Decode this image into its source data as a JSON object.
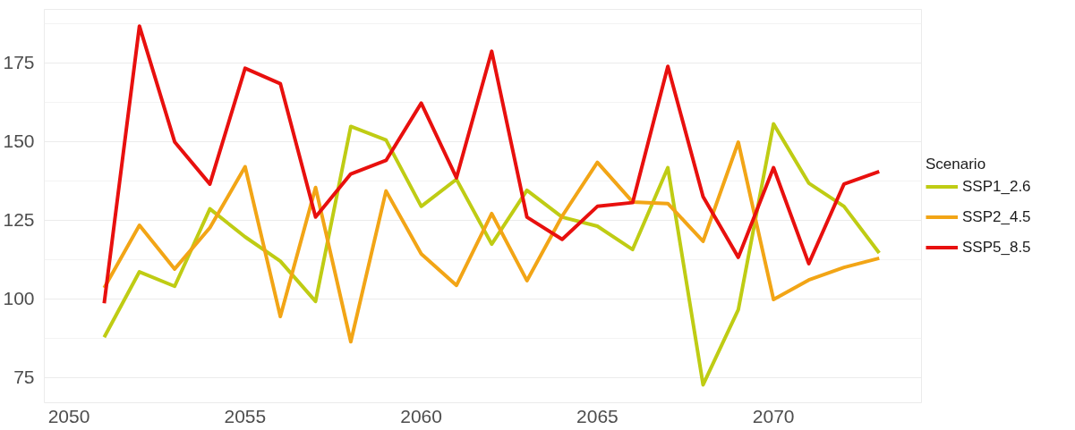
{
  "chart_data": {
    "type": "line",
    "x": [
      2051,
      2052,
      2053,
      2054,
      2055,
      2056,
      2057,
      2058,
      2059,
      2060,
      2061,
      2062,
      2063,
      2064,
      2065,
      2066,
      2067,
      2068,
      2069,
      2070,
      2071,
      2072,
      2073
    ],
    "legend_title": "Scenario",
    "series": [
      {
        "name": "SSP1_2.6",
        "color": "#bfcc14",
        "values": [
          87.8,
          108.6,
          104,
          128.6,
          119.7,
          112,
          99.2,
          154.8,
          150.5,
          129.4,
          138,
          117.4,
          134.5,
          126,
          123.1,
          115.7,
          141.7,
          72.7,
          96.6,
          155.6,
          136.8,
          129.4,
          114.6
        ]
      },
      {
        "name": "SSP2_4.5",
        "color": "#f2a516",
        "values": [
          103.5,
          123.4,
          109.5,
          122.6,
          142,
          94.4,
          135.4,
          86.4,
          134.3,
          114.3,
          104.3,
          127.1,
          105.8,
          126.3,
          143.4,
          130.8,
          130.3,
          118.3,
          149.8,
          99.8,
          106,
          110,
          112.9
        ]
      },
      {
        "name": "SSP5_8.5",
        "color": "#e8100e",
        "values": [
          98.6,
          186.7,
          149.9,
          136.5,
          173.3,
          168.4,
          126,
          139.7,
          144,
          162.2,
          138.5,
          178.7,
          126,
          118.9,
          129.4,
          130.6,
          173.9,
          132.5,
          113.2,
          141.7,
          111.2,
          136.5,
          140.5
        ]
      }
    ],
    "xlim": [
      2049.3,
      2074.2
    ],
    "ylim": [
      67,
      192
    ],
    "xticks": [
      2050,
      2055,
      2060,
      2065,
      2070
    ],
    "yticks": [
      75,
      100,
      125,
      150,
      175
    ],
    "grid": true,
    "legend": "right",
    "marker": "none",
    "line_style": "solid"
  }
}
